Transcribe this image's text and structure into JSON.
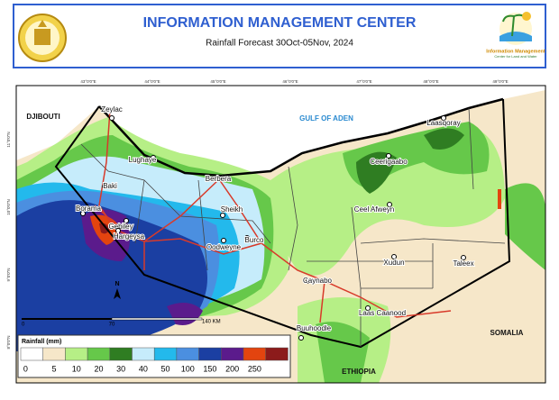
{
  "header": {
    "title": "INFORMATION MANAGEMENT CENTER",
    "subtitle": "Rainfall Forecast 30Oct-05Nov, 2024",
    "logo_text": [
      "Information Management",
      "Center for Land and Water"
    ]
  },
  "map": {
    "countries": [
      "DJIBOUTI",
      "GULF OF ADEN",
      "SOMALIA",
      "ETHIOPIA"
    ],
    "places": [
      "Zeylac",
      "Lughaye",
      "Baki",
      "Borama",
      "Gebiley",
      "Hargeysa",
      "Berbera",
      "Sheikh",
      "Burco",
      "Oodweyne",
      "Caynabo",
      "Buuhoodle",
      "Laas Caanood",
      "Xudun",
      "Taleex",
      "Ceel Afweyn",
      "Ceerigaabo",
      "Laasqoray"
    ],
    "longitudes": [
      "43°0'0\"E",
      "44°0'0\"E",
      "45°0'0\"E",
      "46°0'0\"E",
      "47°0'0\"E",
      "48°0'0\"E",
      "49°0'0\"E"
    ],
    "latitudes": [
      "11°0'0\"N",
      "10°0'0\"N",
      "9°0'0\"N",
      "8°0'0\"N"
    ],
    "scale": [
      "0",
      "70",
      "140 KM"
    ],
    "north": "N"
  },
  "legend": {
    "title": "Rainfall (mm)",
    "labels": [
      0,
      5,
      10,
      20,
      30,
      40,
      50,
      100,
      150,
      200,
      250
    ],
    "colors": [
      "#ffffff",
      "#f6e7c9",
      "#b6ef86",
      "#66c84a",
      "#2f7d22",
      "#c6ecfb",
      "#23b9ec",
      "#4b8fe0",
      "#1b3fa2",
      "#5b1b8c",
      "#e3440f",
      "#8c1b1b"
    ]
  }
}
